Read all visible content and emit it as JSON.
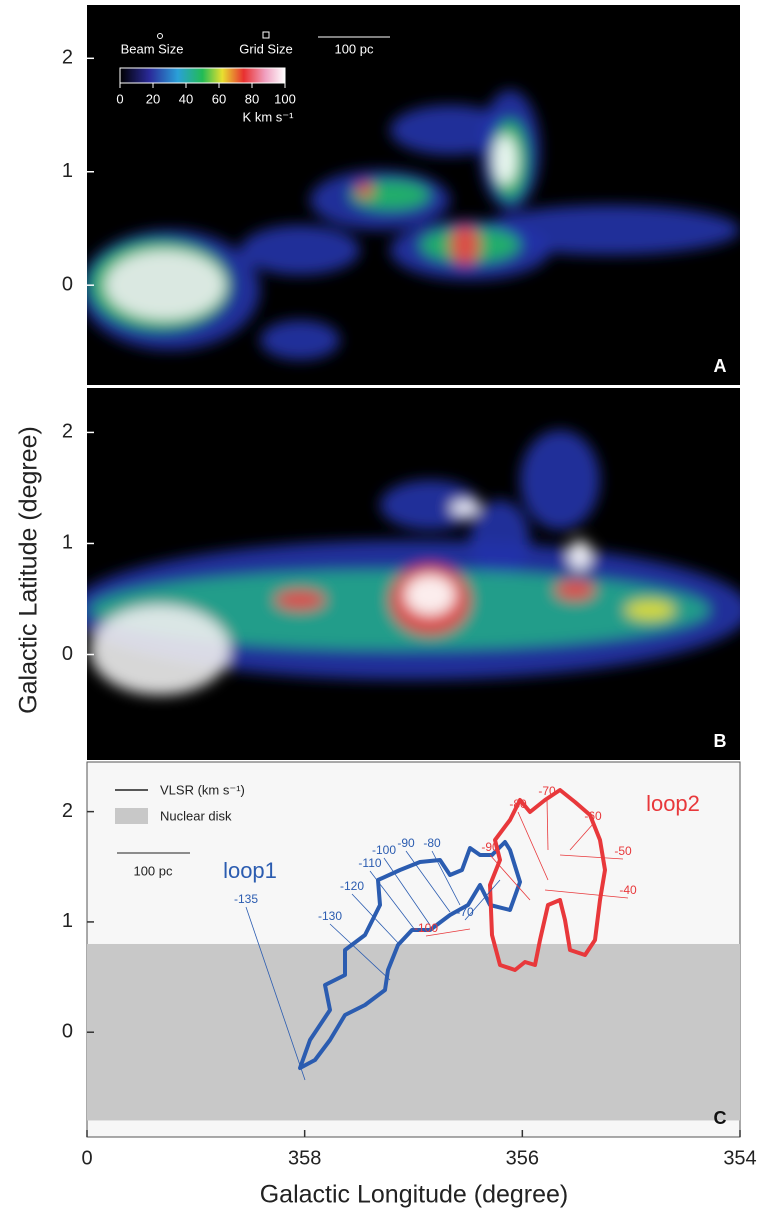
{
  "chart_data": [
    {
      "type": "map",
      "panel": "A",
      "xlim": [
        360,
        354
      ],
      "ylim": [
        -0.88,
        2.47
      ],
      "yticks": [
        0,
        1,
        2
      ],
      "beam_label": "Beam Size",
      "grid_label": "Grid Size",
      "scale_label": "100 pc",
      "colorbar": {
        "lim": [
          0,
          100
        ],
        "ticks": [
          0,
          20,
          40,
          60,
          80,
          100
        ],
        "label": "K km s⁻¹"
      }
    },
    {
      "type": "map",
      "panel": "B",
      "xlim": [
        360,
        354
      ],
      "ylim": [
        -0.95,
        2.4
      ],
      "yticks": [
        0,
        1,
        2
      ],
      "ylabel": "Galactic Latitude (degree)"
    },
    {
      "type": "diagram",
      "panel": "C",
      "xlim": [
        360,
        354
      ],
      "ylim": [
        -0.95,
        2.45
      ],
      "yticks": [
        0,
        1,
        2
      ],
      "xticks": [
        {
          "value": 360,
          "label": "0"
        },
        358,
        356,
        354
      ],
      "xlabel": "Galactic Longitude (degree)",
      "legend": {
        "line_label": "VLSR (km s⁻¹)",
        "nuclear_disk": "Nuclear disk"
      },
      "nuclear_disk_ylim": [
        -0.8,
        0.8
      ],
      "scale_label": "100 pc",
      "series": [
        {
          "name": "loop1",
          "color": "#2b5cb0",
          "labels": [
            "-135",
            "-130",
            "-120",
            "-110",
            "-100",
            "-90",
            "-80",
            "-70"
          ]
        },
        {
          "name": "loop2",
          "color": "#e8383b",
          "labels": [
            "-100",
            "-90",
            "-80",
            "-70",
            "-60",
            "-50",
            "-40"
          ]
        }
      ]
    }
  ]
}
